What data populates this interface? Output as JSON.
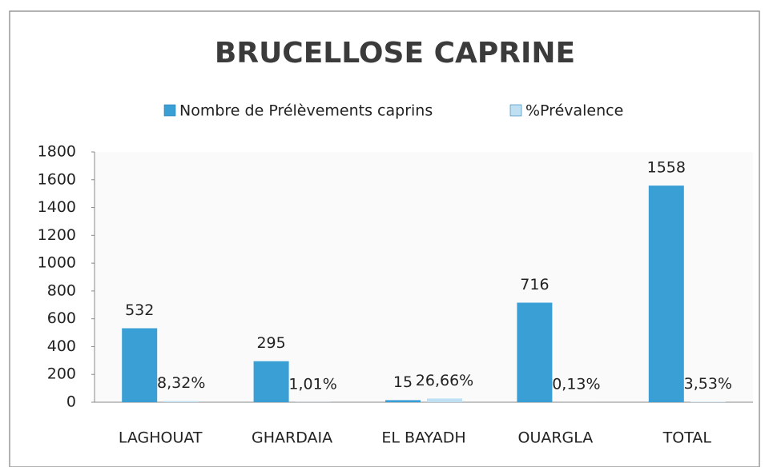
{
  "chart_data": {
    "type": "bar",
    "title": "BRUCELLOSE CAPRINE",
    "categories": [
      "LAGHOUAT",
      "GHARDAIA",
      "EL BAYADH",
      "OUARGLA",
      "TOTAL"
    ],
    "series": [
      {
        "name": "Nombre de Prélèvements caprins",
        "color": "#3a9fd5",
        "values": [
          532,
          295,
          15,
          716,
          1558
        ]
      },
      {
        "name": "%Prévalence",
        "color": "#bfe0f3",
        "values": [
          8.32,
          1.01,
          26.66,
          0.13,
          3.53
        ],
        "value_labels": [
          "8,32%",
          "1,01%",
          "26,66%",
          "0,13%",
          "3,53%"
        ]
      }
    ],
    "ylim": [
      0,
      1800
    ],
    "yticks": [
      0,
      200,
      400,
      600,
      800,
      1000,
      1200,
      1400,
      1600,
      1800
    ],
    "grid": false,
    "legend": "top"
  }
}
